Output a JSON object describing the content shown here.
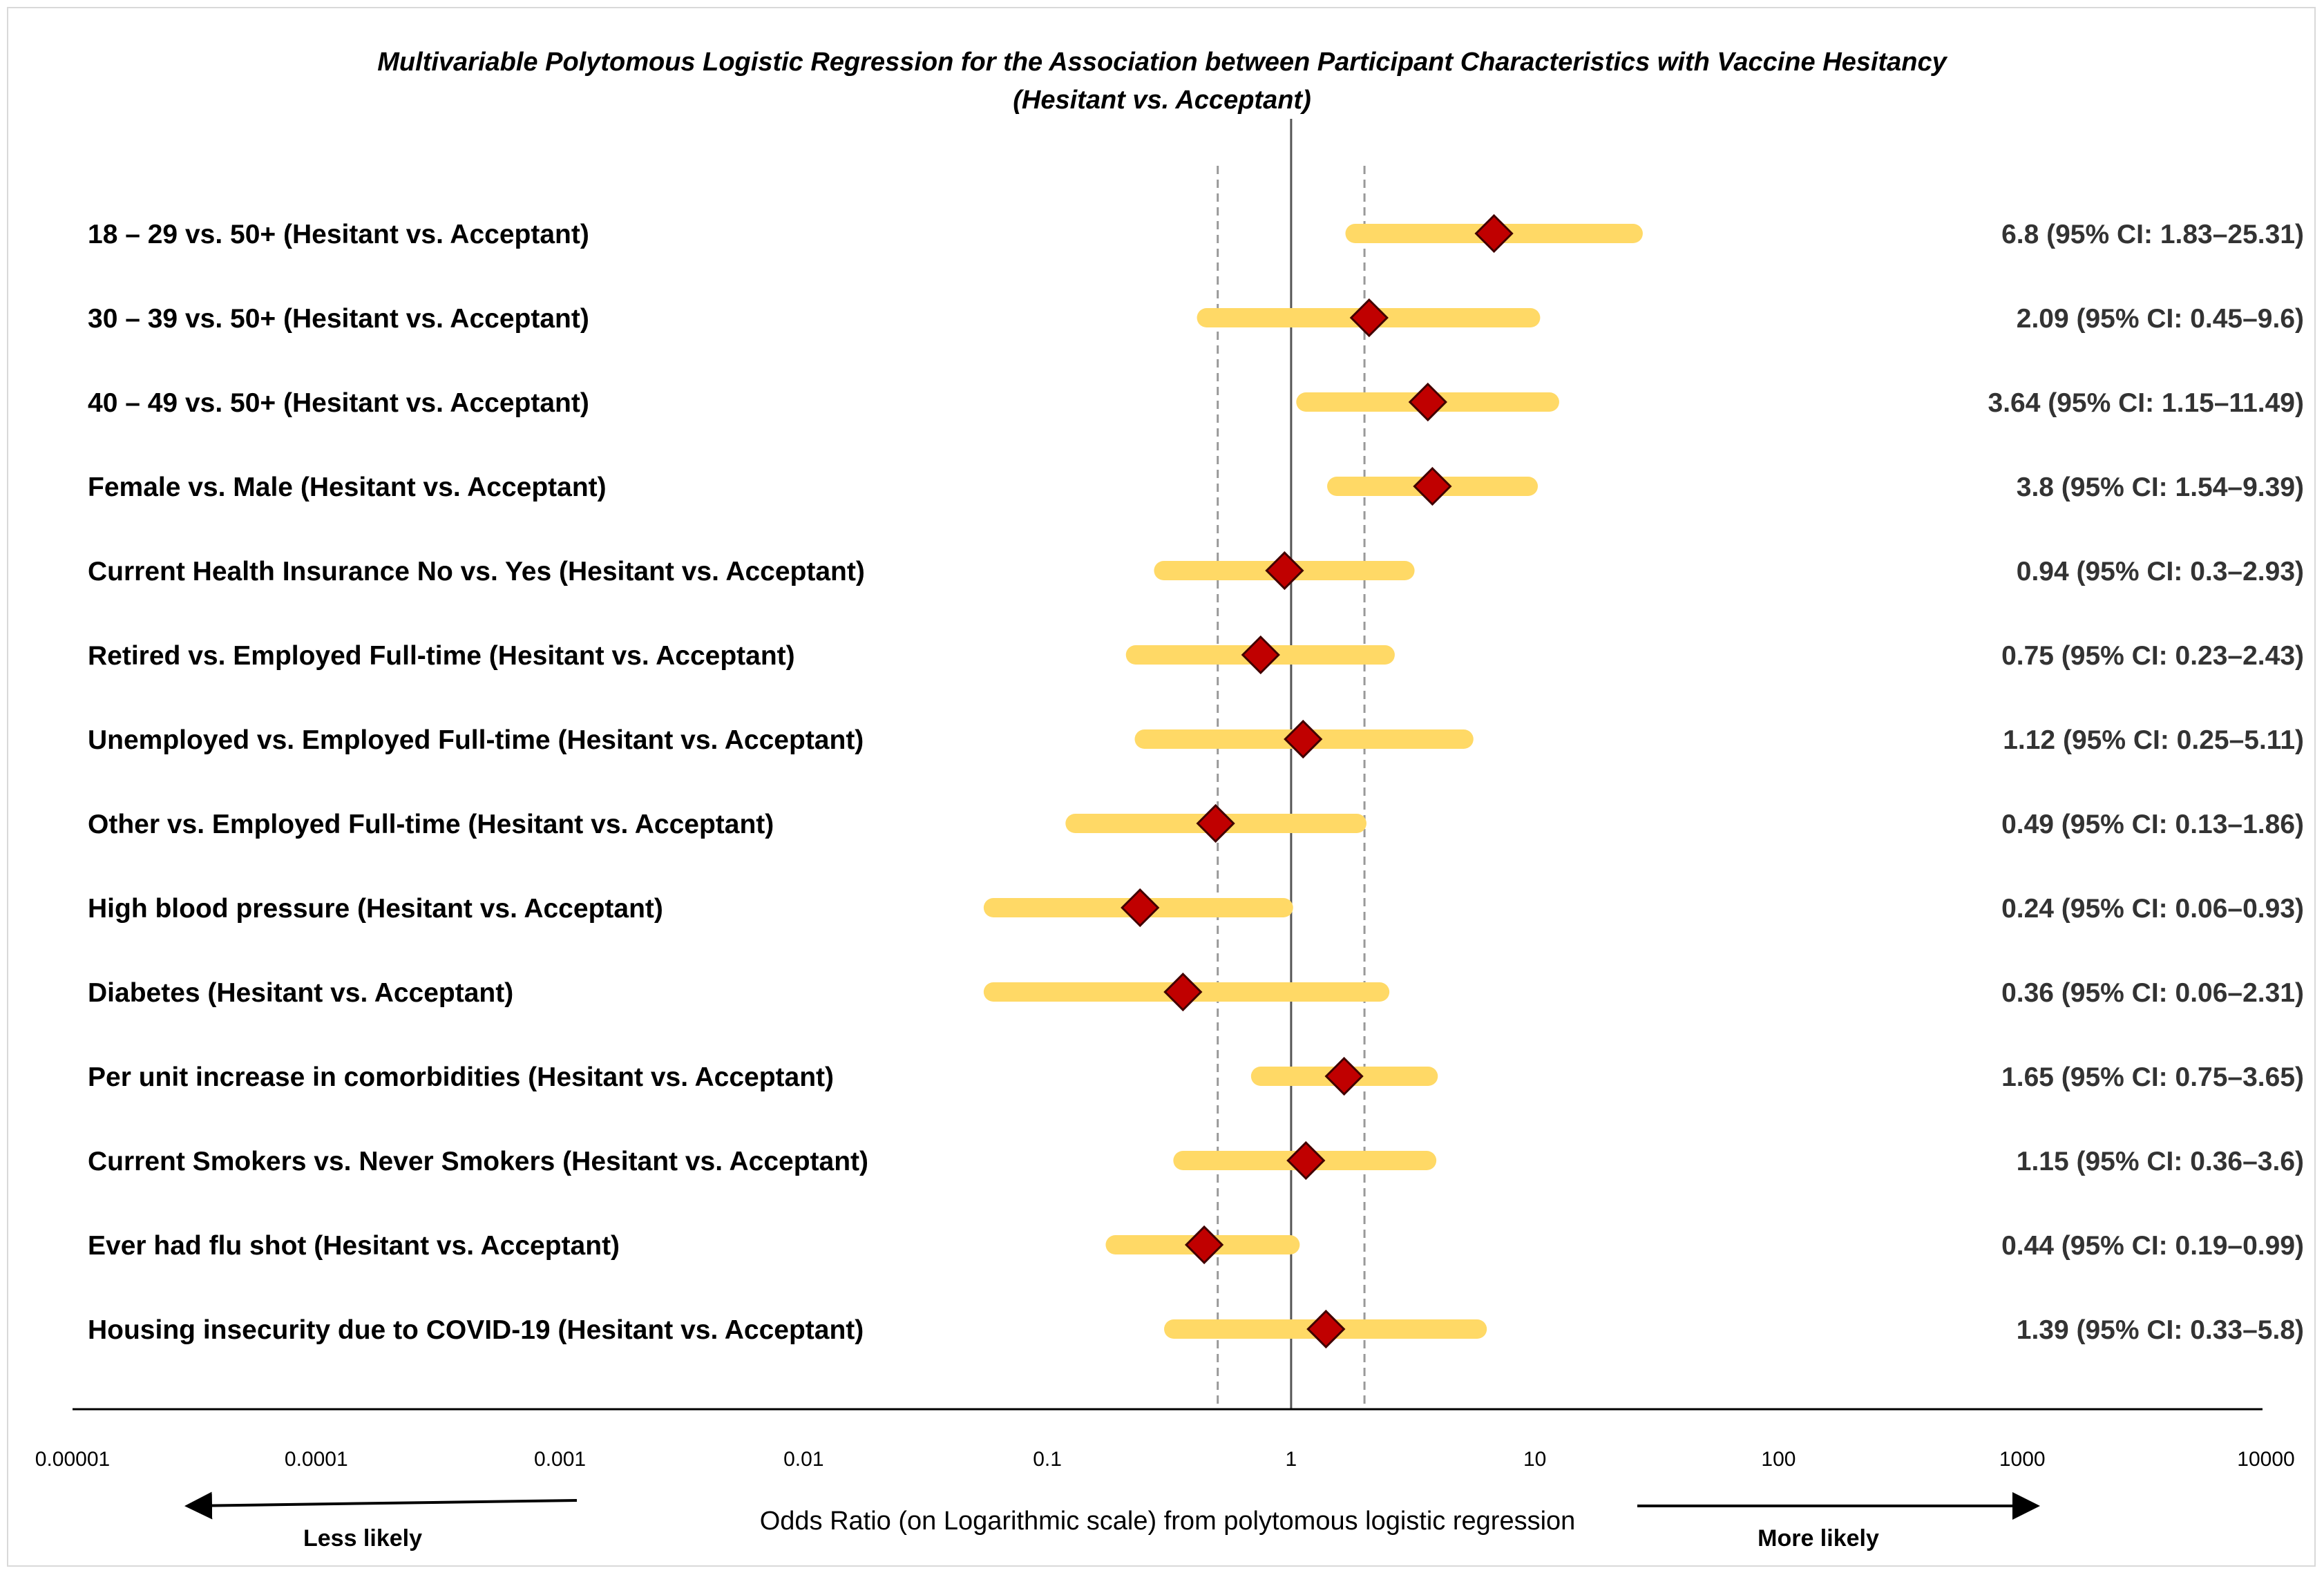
{
  "chart_data": {
    "type": "forest",
    "title_line1": "Multivariable Polytomous Logistic Regression for the Association between Participant Characteristics with Vaccine Hesitancy",
    "title_line2": "(Hesitant vs. Acceptant)",
    "xlabel": "Odds Ratio (on Logarithmic scale) from polytomous logistic regression",
    "xscale": "log",
    "xlim": [
      1e-05,
      10000
    ],
    "ticks": [
      "0.00001",
      "0.0001",
      "0.001",
      "0.01",
      "0.1",
      "1",
      "10",
      "100",
      "1000",
      "10000"
    ],
    "reference_line": 1,
    "dashed_lines": [
      0.5,
      2
    ],
    "less_likely_label": "Less likely",
    "more_likely_label": "More likely",
    "colors": {
      "ci_bar": "#FFD966",
      "marker_fill": "#C00000",
      "marker_stroke": "#400000",
      "axis": "#000000",
      "dashed": "#999999",
      "value_text": "#333333"
    },
    "rows": [
      {
        "label": "18 – 29 vs. 50+ (Hesitant vs. Acceptant)",
        "or": 6.8,
        "lo": 1.83,
        "hi": 25.31,
        "text": "6.8 (95% CI: 1.83–25.31)"
      },
      {
        "label": "30 – 39 vs. 50+ (Hesitant vs. Acceptant)",
        "or": 2.09,
        "lo": 0.45,
        "hi": 9.6,
        "text": "2.09 (95% CI: 0.45–9.6)"
      },
      {
        "label": "40 – 49 vs. 50+ (Hesitant vs. Acceptant)",
        "or": 3.64,
        "lo": 1.15,
        "hi": 11.49,
        "text": "3.64 (95% CI: 1.15–11.49)"
      },
      {
        "label": "Female vs. Male (Hesitant vs. Acceptant)",
        "or": 3.8,
        "lo": 1.54,
        "hi": 9.39,
        "text": "3.8 (95% CI: 1.54–9.39)"
      },
      {
        "label": "Current Health Insurance No vs. Yes (Hesitant vs. Acceptant)",
        "or": 0.94,
        "lo": 0.3,
        "hi": 2.93,
        "text": "0.94 (95% CI: 0.3–2.93)"
      },
      {
        "label": "Retired vs. Employed Full-time (Hesitant vs. Acceptant)",
        "or": 0.75,
        "lo": 0.23,
        "hi": 2.43,
        "text": "0.75 (95% CI: 0.23–2.43)"
      },
      {
        "label": "Unemployed vs. Employed Full-time (Hesitant vs. Acceptant)",
        "or": 1.12,
        "lo": 0.25,
        "hi": 5.11,
        "text": "1.12 (95% CI: 0.25–5.11)"
      },
      {
        "label": "Other vs. Employed Full-time (Hesitant vs. Acceptant)",
        "or": 0.49,
        "lo": 0.13,
        "hi": 1.86,
        "text": "0.49 (95% CI: 0.13–1.86)"
      },
      {
        "label": "High blood pressure (Hesitant vs. Acceptant)",
        "or": 0.24,
        "lo": 0.06,
        "hi": 0.93,
        "text": "0.24 (95% CI: 0.06–0.93)"
      },
      {
        "label": "Diabetes (Hesitant vs. Acceptant)",
        "or": 0.36,
        "lo": 0.06,
        "hi": 2.31,
        "text": "0.36 (95% CI: 0.06–2.31)"
      },
      {
        "label": "Per unit increase in comorbidities (Hesitant vs. Acceptant)",
        "or": 1.65,
        "lo": 0.75,
        "hi": 3.65,
        "text": "1.65 (95% CI: 0.75–3.65)"
      },
      {
        "label": "Current Smokers vs. Never Smokers (Hesitant vs. Acceptant)",
        "or": 1.15,
        "lo": 0.36,
        "hi": 3.6,
        "text": "1.15 (95% CI: 0.36–3.6)"
      },
      {
        "label": "Ever had flu shot (Hesitant vs. Acceptant)",
        "or": 0.44,
        "lo": 0.19,
        "hi": 0.99,
        "text": "0.44 (95% CI: 0.19–0.99)"
      },
      {
        "label": "Housing insecurity due to COVID-19 (Hesitant vs. Acceptant)",
        "or": 1.39,
        "lo": 0.33,
        "hi": 5.8,
        "text": "1.39 (95% CI: 0.33–5.8)"
      }
    ]
  }
}
